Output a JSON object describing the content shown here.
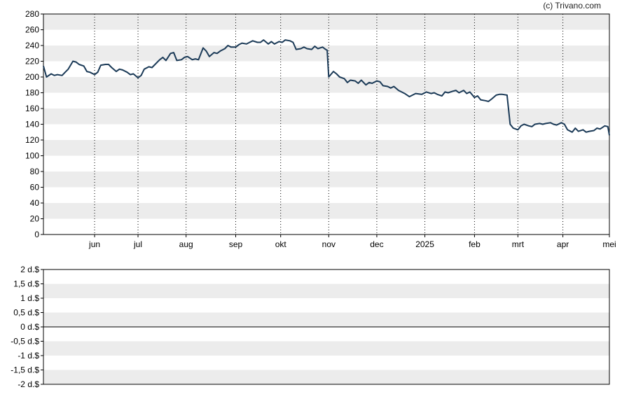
{
  "credit": "(c) Trivano.com",
  "colors": {
    "line": "#1b3a57",
    "band": "#ececec",
    "frame": "#000000",
    "grid": "#000000"
  },
  "chart_data": [
    {
      "type": "line",
      "ylim": [
        0,
        280
      ],
      "yticks": [
        0,
        20,
        40,
        60,
        80,
        100,
        120,
        140,
        160,
        180,
        200,
        220,
        240,
        260,
        280
      ],
      "ytick_labels": [
        "0",
        "20",
        "40",
        "60",
        "80",
        "100",
        "120",
        "140",
        "160",
        "180",
        "200",
        "220",
        "240",
        "260",
        "280"
      ],
      "xticks": [
        {
          "label": "jun",
          "date": "2024-06-03"
        },
        {
          "label": "jul",
          "date": "2024-07-01"
        },
        {
          "label": "aug",
          "date": "2024-08-01"
        },
        {
          "label": "sep",
          "date": "2024-09-02"
        },
        {
          "label": "okt",
          "date": "2024-10-01"
        },
        {
          "label": "nov",
          "date": "2024-11-01"
        },
        {
          "label": "dec",
          "date": "2024-12-02"
        },
        {
          "label": "2025",
          "date": "2025-01-02"
        },
        {
          "label": "feb",
          "date": "2025-02-03"
        },
        {
          "label": "mrt",
          "date": "2025-03-03"
        },
        {
          "label": "apr",
          "date": "2025-04-01"
        },
        {
          "label": "mei",
          "date": "2025-05-01"
        }
      ],
      "xlim": [
        "2024-05-01",
        "2025-05-01"
      ],
      "grid": "dotted vertical at month ticks, alternating horizontal bands",
      "series": [
        {
          "points": [
            [
              "2024-05-01",
              214
            ],
            [
              "2024-05-03",
              200
            ],
            [
              "2024-05-06",
              204
            ],
            [
              "2024-05-08",
              202
            ],
            [
              "2024-05-10",
              203
            ],
            [
              "2024-05-13",
              202
            ],
            [
              "2024-05-15",
              206
            ],
            [
              "2024-05-17",
              210
            ],
            [
              "2024-05-20",
              220
            ],
            [
              "2024-05-22",
              219
            ],
            [
              "2024-05-24",
              216
            ],
            [
              "2024-05-27",
              214
            ],
            [
              "2024-05-29",
              207
            ],
            [
              "2024-05-31",
              206
            ],
            [
              "2024-06-03",
              203
            ],
            [
              "2024-06-05",
              206
            ],
            [
              "2024-06-07",
              215
            ],
            [
              "2024-06-10",
              216
            ],
            [
              "2024-06-12",
              216
            ],
            [
              "2024-06-14",
              212
            ],
            [
              "2024-06-17",
              207
            ],
            [
              "2024-06-19",
              210
            ],
            [
              "2024-06-21",
              209
            ],
            [
              "2024-06-24",
              206
            ],
            [
              "2024-06-26",
              203
            ],
            [
              "2024-06-28",
              204
            ],
            [
              "2024-07-01",
              199
            ],
            [
              "2024-07-03",
              202
            ],
            [
              "2024-07-05",
              210
            ],
            [
              "2024-07-08",
              213
            ],
            [
              "2024-07-10",
              212
            ],
            [
              "2024-07-12",
              216
            ],
            [
              "2024-07-15",
              222
            ],
            [
              "2024-07-17",
              225
            ],
            [
              "2024-07-19",
              221
            ],
            [
              "2024-07-22",
              230
            ],
            [
              "2024-07-24",
              231
            ],
            [
              "2024-07-26",
              221
            ],
            [
              "2024-07-29",
              222
            ],
            [
              "2024-07-31",
              225
            ],
            [
              "2024-08-02",
              226
            ],
            [
              "2024-08-05",
              222
            ],
            [
              "2024-08-07",
              223
            ],
            [
              "2024-08-09",
              222
            ],
            [
              "2024-08-12",
              237
            ],
            [
              "2024-08-14",
              233
            ],
            [
              "2024-08-16",
              226
            ],
            [
              "2024-08-19",
              231
            ],
            [
              "2024-08-21",
              230
            ],
            [
              "2024-08-23",
              233
            ],
            [
              "2024-08-26",
              236
            ],
            [
              "2024-08-28",
              240
            ],
            [
              "2024-08-30",
              238
            ],
            [
              "2024-09-02",
              238
            ],
            [
              "2024-09-04",
              241
            ],
            [
              "2024-09-06",
              243
            ],
            [
              "2024-09-09",
              242
            ],
            [
              "2024-09-11",
              244
            ],
            [
              "2024-09-13",
              246
            ],
            [
              "2024-09-16",
              244
            ],
            [
              "2024-09-18",
              244
            ],
            [
              "2024-09-20",
              247
            ],
            [
              "2024-09-23",
              242
            ],
            [
              "2024-09-25",
              245
            ],
            [
              "2024-09-27",
              242
            ],
            [
              "2024-09-30",
              245
            ],
            [
              "2024-10-02",
              244
            ],
            [
              "2024-10-04",
              247
            ],
            [
              "2024-10-07",
              246
            ],
            [
              "2024-10-09",
              244
            ],
            [
              "2024-10-11",
              235
            ],
            [
              "2024-10-14",
              236
            ],
            [
              "2024-10-16",
              238
            ],
            [
              "2024-10-18",
              236
            ],
            [
              "2024-10-21",
              235
            ],
            [
              "2024-10-23",
              239
            ],
            [
              "2024-10-25",
              236
            ],
            [
              "2024-10-28",
              238
            ],
            [
              "2024-10-30",
              235
            ],
            [
              "2024-10-31",
              234
            ],
            [
              "2024-11-01",
              200
            ],
            [
              "2024-11-04",
              207
            ],
            [
              "2024-11-06",
              204
            ],
            [
              "2024-11-08",
              200
            ],
            [
              "2024-11-11",
              198
            ],
            [
              "2024-11-13",
              193
            ],
            [
              "2024-11-15",
              196
            ],
            [
              "2024-11-18",
              195
            ],
            [
              "2024-11-20",
              192
            ],
            [
              "2024-11-22",
              196
            ],
            [
              "2024-11-25",
              190
            ],
            [
              "2024-11-27",
              193
            ],
            [
              "2024-11-29",
              192
            ],
            [
              "2024-12-02",
              195
            ],
            [
              "2024-12-04",
              194
            ],
            [
              "2024-12-06",
              189
            ],
            [
              "2024-12-09",
              188
            ],
            [
              "2024-12-11",
              186
            ],
            [
              "2024-12-13",
              188
            ],
            [
              "2024-12-16",
              183
            ],
            [
              "2024-12-18",
              181
            ],
            [
              "2024-12-20",
              179
            ],
            [
              "2024-12-23",
              175
            ],
            [
              "2024-12-27",
              179
            ],
            [
              "2024-12-31",
              178
            ],
            [
              "2025-01-03",
              181
            ],
            [
              "2025-01-06",
              179
            ],
            [
              "2025-01-08",
              180
            ],
            [
              "2025-01-10",
              178
            ],
            [
              "2025-01-13",
              176
            ],
            [
              "2025-01-15",
              181
            ],
            [
              "2025-01-17",
              180
            ],
            [
              "2025-01-20",
              182
            ],
            [
              "2025-01-22",
              183
            ],
            [
              "2025-01-24",
              180
            ],
            [
              "2025-01-27",
              183
            ],
            [
              "2025-01-29",
              179
            ],
            [
              "2025-01-31",
              181
            ],
            [
              "2025-02-03",
              174
            ],
            [
              "2025-02-05",
              176
            ],
            [
              "2025-02-07",
              171
            ],
            [
              "2025-02-10",
              170
            ],
            [
              "2025-02-12",
              169
            ],
            [
              "2025-02-14",
              172
            ],
            [
              "2025-02-17",
              177
            ],
            [
              "2025-02-19",
              178
            ],
            [
              "2025-02-21",
              178
            ],
            [
              "2025-02-24",
              177
            ],
            [
              "2025-02-26",
              140
            ],
            [
              "2025-02-28",
              135
            ],
            [
              "2025-03-03",
              133
            ],
            [
              "2025-03-05",
              138
            ],
            [
              "2025-03-07",
              140
            ],
            [
              "2025-03-10",
              138
            ],
            [
              "2025-03-12",
              137
            ],
            [
              "2025-03-14",
              140
            ],
            [
              "2025-03-17",
              141
            ],
            [
              "2025-03-19",
              140
            ],
            [
              "2025-03-21",
              141
            ],
            [
              "2025-03-24",
              142
            ],
            [
              "2025-03-26",
              140
            ],
            [
              "2025-03-28",
              139
            ],
            [
              "2025-03-31",
              142
            ],
            [
              "2025-04-02",
              140
            ],
            [
              "2025-04-04",
              133
            ],
            [
              "2025-04-07",
              130
            ],
            [
              "2025-04-09",
              135
            ],
            [
              "2025-04-11",
              131
            ],
            [
              "2025-04-14",
              133
            ],
            [
              "2025-04-16",
              130
            ],
            [
              "2025-04-18",
              131
            ],
            [
              "2025-04-21",
              132
            ],
            [
              "2025-04-23",
              135
            ],
            [
              "2025-04-25",
              134
            ],
            [
              "2025-04-28",
              138
            ],
            [
              "2025-04-30",
              137
            ],
            [
              "2025-05-01",
              126
            ]
          ]
        }
      ]
    },
    {
      "type": "line",
      "ylim": [
        -2,
        2
      ],
      "yticks": [
        -2,
        -1.5,
        -1,
        -0.5,
        0,
        0.5,
        1,
        1.5,
        2
      ],
      "ytick_labels": [
        "-2 d.$",
        "-1,5 d.$",
        "-1 d.$",
        "-0,5 d.$",
        "0 d.$",
        "0,5 d.$",
        "1 d.$",
        "1,5 d.$",
        "2 d.$"
      ],
      "zero_line": 0,
      "series": []
    }
  ]
}
